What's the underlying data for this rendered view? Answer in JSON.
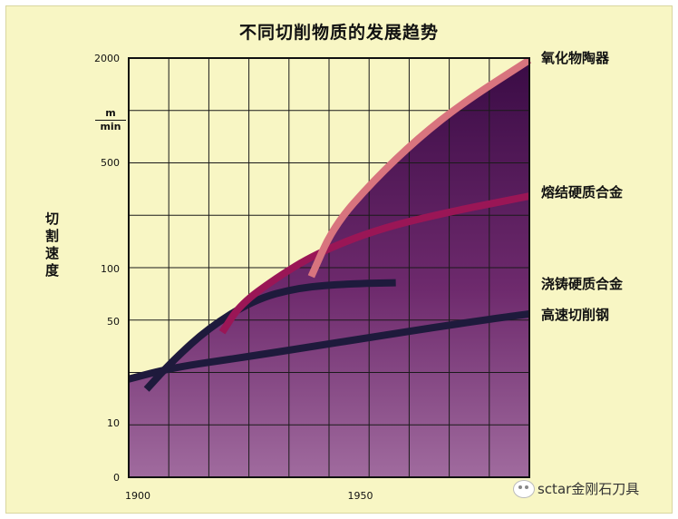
{
  "chart_data": {
    "type": "line",
    "title": "不同切削物质的发展趋势",
    "ylabel": "切割速度",
    "yunit": {
      "numerator": "m",
      "denominator": "min"
    },
    "y_ticks": [
      {
        "label": "2000",
        "value": 2000
      },
      {
        "label": "500",
        "value": 500
      },
      {
        "label": "100",
        "value": 100
      },
      {
        "label": "50",
        "value": 50
      },
      {
        "label": "10",
        "value": 10
      },
      {
        "label": "0",
        "value": 0
      }
    ],
    "x_ticks": [
      {
        "label": "1900",
        "value": 1900
      },
      {
        "label": "1950",
        "value": 1950
      }
    ],
    "xlim": [
      1900,
      1990
    ],
    "scale": "log",
    "grid": true,
    "series": [
      {
        "name": "高速切削钢",
        "color": "#1e1a3c",
        "points": [
          [
            1900,
            20
          ],
          [
            1910,
            24
          ],
          [
            1925,
            28
          ],
          [
            1940,
            33
          ],
          [
            1955,
            39
          ],
          [
            1970,
            46
          ],
          [
            1985,
            53
          ],
          [
            1990,
            55
          ]
        ]
      },
      {
        "name": "浇铸硬质合金",
        "color": "#1e1a3c",
        "points": [
          [
            1904,
            17
          ],
          [
            1910,
            27
          ],
          [
            1918,
            45
          ],
          [
            1928,
            66
          ],
          [
            1938,
            78
          ],
          [
            1950,
            82
          ],
          [
            1960,
            83
          ]
        ]
      },
      {
        "name": "熔结硬质合金",
        "color": "#9a1656",
        "points": [
          [
            1921,
            42
          ],
          [
            1925,
            62
          ],
          [
            1933,
            88
          ],
          [
            1942,
            125
          ],
          [
            1955,
            178
          ],
          [
            1970,
            230
          ],
          [
            1990,
            300
          ]
        ]
      },
      {
        "name": "氧化物陶器",
        "color": "#d8747e",
        "points": [
          [
            1941,
            90
          ],
          [
            1946,
            190
          ],
          [
            1955,
            380
          ],
          [
            1965,
            690
          ],
          [
            1975,
            1100
          ],
          [
            1990,
            1950
          ]
        ]
      }
    ]
  },
  "watermark": "sctar金刚石刀具"
}
